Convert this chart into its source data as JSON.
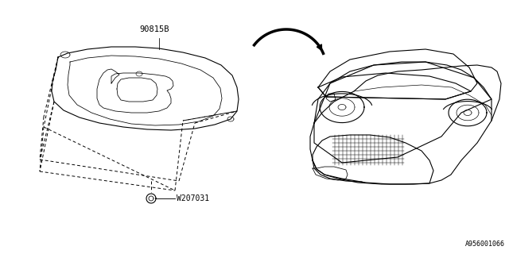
{
  "background_color": "#ffffff",
  "part_label_1": "90815B",
  "part_label_2": "W207031",
  "diagram_id": "A956001066",
  "line_color": "#000000"
}
